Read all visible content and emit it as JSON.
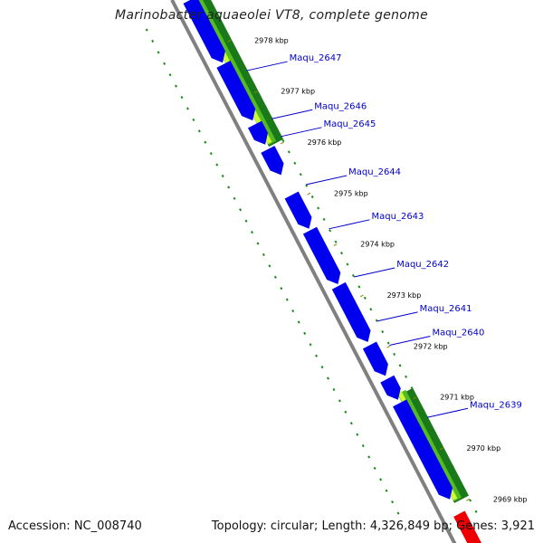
{
  "map": {
    "title": "Marinobacter aquaeolei VT8, complete genome",
    "accession_text": "Accession: NC_008740",
    "summary_text": "Topology: circular; Length: 4,326,849 bp; Genes: 3,921",
    "colors": {
      "backbone": "#808080",
      "cds": "#0000ee",
      "gc_dark": "#1a7a1a",
      "gc_mid": "#55bb22",
      "gc_light": "#ccff33",
      "dotted": "#1a8a1a",
      "label": "#0000cc",
      "tick_mark": "#888800",
      "highlight": "#ee0000"
    }
  },
  "ticks": [
    {
      "label": "2978 kbp",
      "kbp": 2978
    },
    {
      "label": "2977 kbp",
      "kbp": 2977
    },
    {
      "label": "2976 kbp",
      "kbp": 2976
    },
    {
      "label": "2975 kbp",
      "kbp": 2975
    },
    {
      "label": "2974 kbp",
      "kbp": 2974
    },
    {
      "label": "2973 kbp",
      "kbp": 2973
    },
    {
      "label": "2972 kbp",
      "kbp": 2972
    },
    {
      "label": "2971 kbp",
      "kbp": 2971
    },
    {
      "label": "2970 kbp",
      "kbp": 2970
    },
    {
      "label": "2969 kbp",
      "kbp": 2969
    }
  ],
  "genes": [
    {
      "label": "Maqu_2647"
    },
    {
      "label": "Maqu_2646"
    },
    {
      "label": "Maqu_2645"
    },
    {
      "label": "Maqu_2644"
    },
    {
      "label": "Maqu_2643"
    },
    {
      "label": "Maqu_2642"
    },
    {
      "label": "Maqu_2641"
    },
    {
      "label": "Maqu_2640"
    },
    {
      "label": "Maqu_2639"
    }
  ]
}
